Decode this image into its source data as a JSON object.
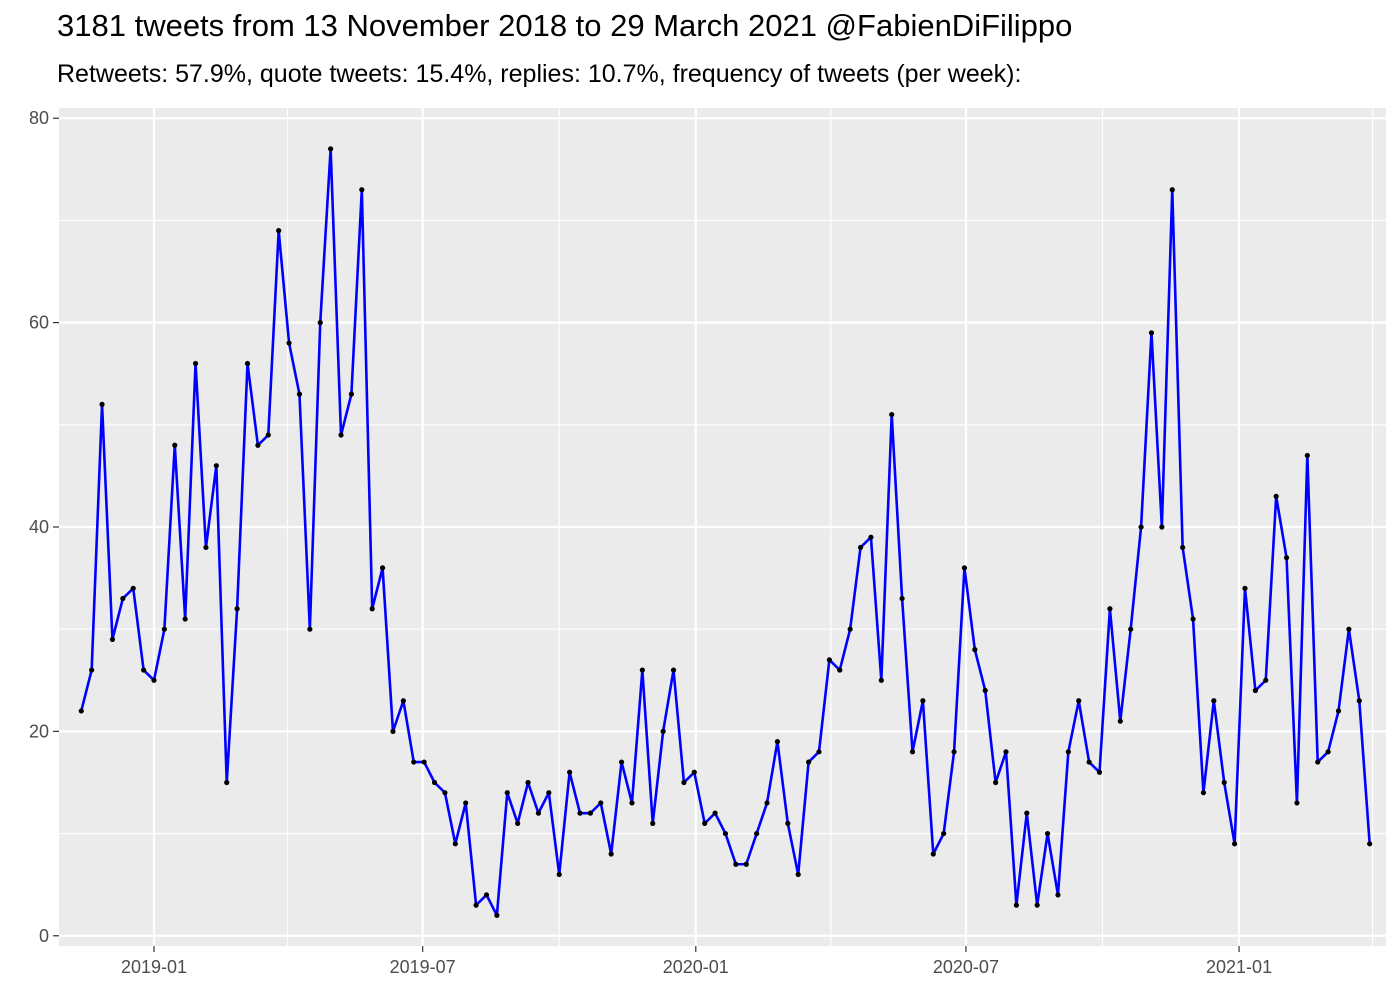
{
  "chart_data": {
    "type": "line",
    "title": "3181 tweets from 13 November 2018 to 29 March 2021 @FabienDiFilippo",
    "subtitle": "Retweets: 57.9%, quote tweets: 15.4%, replies: 10.7%, frequency of tweets (per week):",
    "xlabel": "",
    "ylabel": "",
    "x_start": "2018-11-13",
    "x_step_days": 7,
    "xlim": [
      "2018-10-29",
      "2021-04-10"
    ],
    "ylim": [
      -1,
      81
    ],
    "x_ticks": [
      {
        "date": "2019-01-01",
        "label": "2019-01"
      },
      {
        "date": "2019-07-01",
        "label": "2019-07"
      },
      {
        "date": "2020-01-01",
        "label": "2020-01"
      },
      {
        "date": "2020-07-01",
        "label": "2020-07"
      },
      {
        "date": "2021-01-01",
        "label": "2021-01"
      }
    ],
    "x_minor_ticks": [
      "2018-10-01",
      "2019-04-01",
      "2019-10-01",
      "2020-04-01",
      "2020-10-01",
      "2021-04-01"
    ],
    "y_ticks": [
      0,
      20,
      40,
      60,
      80
    ],
    "y_minor_ticks": [
      10,
      30,
      50,
      70
    ],
    "grid": true,
    "line_color": "#0000ff",
    "point_color": "#000000",
    "panel_color": "#ebebeb",
    "values": [
      22,
      26,
      52,
      29,
      33,
      34,
      26,
      25,
      30,
      48,
      31,
      56,
      38,
      46,
      15,
      32,
      56,
      48,
      49,
      69,
      58,
      53,
      30,
      60,
      77,
      49,
      53,
      73,
      32,
      36,
      20,
      23,
      17,
      17,
      15,
      14,
      9,
      13,
      3,
      4,
      2,
      14,
      11,
      15,
      12,
      14,
      6,
      16,
      12,
      12,
      13,
      8,
      17,
      13,
      26,
      11,
      20,
      26,
      15,
      16,
      11,
      12,
      10,
      7,
      7,
      10,
      13,
      19,
      11,
      6,
      17,
      18,
      27,
      26,
      30,
      38,
      39,
      25,
      51,
      33,
      18,
      23,
      8,
      10,
      18,
      36,
      28,
      24,
      15,
      18,
      3,
      12,
      3,
      10,
      4,
      18,
      23,
      17,
      16,
      32,
      21,
      30,
      40,
      59,
      40,
      73,
      38,
      31,
      14,
      23,
      15,
      9,
      34,
      24,
      25,
      43,
      37,
      13,
      47,
      17,
      18,
      22,
      30,
      23,
      9
    ]
  }
}
